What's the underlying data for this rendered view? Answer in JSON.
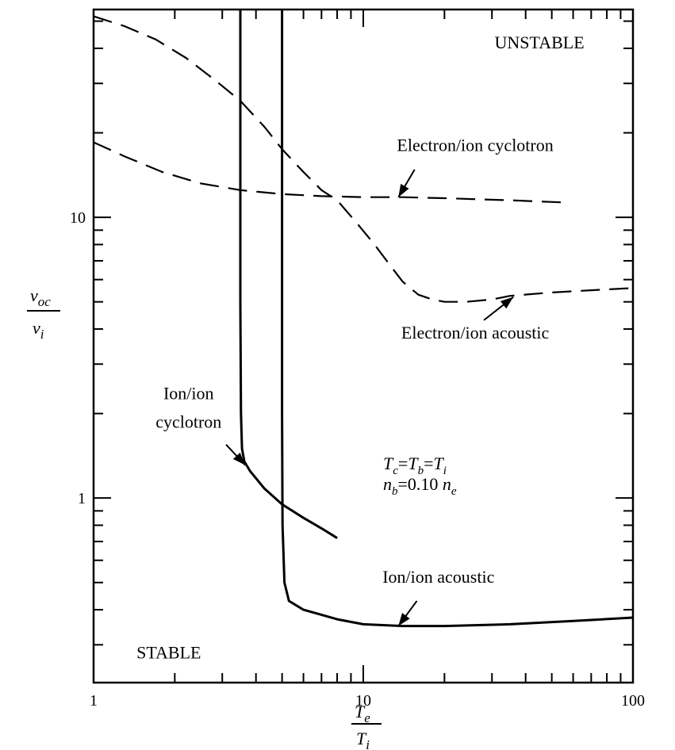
{
  "chart_data": {
    "type": "line",
    "x_scale": "log",
    "y_scale": "log",
    "xlim": [
      1,
      100
    ],
    "ylim": [
      0.22,
      55
    ],
    "x_ticks": [
      {
        "value": 1,
        "label": "1"
      },
      {
        "value": 10,
        "label": "10"
      },
      {
        "value": 100,
        "label": "100"
      }
    ],
    "y_ticks": [
      {
        "value": 1,
        "label": "1"
      },
      {
        "value": 10,
        "label": "10"
      }
    ],
    "xlabel": {
      "num": "T",
      "num_sub": "e",
      "den": "T",
      "den_sub": "i"
    },
    "ylabel": {
      "num": "v",
      "num_sub": "oc",
      "den": "v",
      "den_sub": "i"
    },
    "series": [
      {
        "key": "ion_ion_cyclotron",
        "style": "solid",
        "points": [
          [
            3.5,
            55
          ],
          [
            3.5,
            25
          ],
          [
            3.5,
            5
          ],
          [
            3.52,
            2.0
          ],
          [
            3.55,
            1.5
          ],
          [
            3.62,
            1.35
          ],
          [
            3.8,
            1.25
          ],
          [
            4.3,
            1.08
          ],
          [
            5.0,
            0.95
          ],
          [
            6.0,
            0.85
          ],
          [
            7.0,
            0.78
          ],
          [
            8.0,
            0.72
          ]
        ]
      },
      {
        "key": "ion_ion_acoustic",
        "style": "solid",
        "points": [
          [
            5.0,
            55
          ],
          [
            5.0,
            20
          ],
          [
            5.0,
            2.0
          ],
          [
            5.02,
            0.8
          ],
          [
            5.1,
            0.5
          ],
          [
            5.3,
            0.43
          ],
          [
            6.0,
            0.4
          ],
          [
            8.0,
            0.37
          ],
          [
            10.0,
            0.355
          ],
          [
            14.0,
            0.35
          ],
          [
            20.0,
            0.35
          ],
          [
            35.0,
            0.355
          ],
          [
            60.0,
            0.365
          ],
          [
            100.0,
            0.375
          ]
        ]
      },
      {
        "key": "electron_ion_cyclotron",
        "style": "dashed",
        "points": [
          [
            1.0,
            18.5
          ],
          [
            1.3,
            16.5
          ],
          [
            1.8,
            14.5
          ],
          [
            2.5,
            13.2
          ],
          [
            3.5,
            12.5
          ],
          [
            5.0,
            12.1
          ],
          [
            7.0,
            11.9
          ],
          [
            10.0,
            11.8
          ],
          [
            14.0,
            11.8
          ],
          [
            20.0,
            11.7
          ],
          [
            35.0,
            11.5
          ],
          [
            55.0,
            11.3
          ]
        ]
      },
      {
        "key": "electron_ion_acoustic",
        "style": "dashed",
        "points": [
          [
            1.0,
            52
          ],
          [
            1.3,
            48
          ],
          [
            1.7,
            43
          ],
          [
            2.2,
            37
          ],
          [
            2.8,
            31
          ],
          [
            3.5,
            26
          ],
          [
            4.3,
            21
          ],
          [
            5.0,
            17.5
          ],
          [
            6.0,
            14.5
          ],
          [
            7.0,
            12.5
          ],
          [
            8.0,
            11.5
          ],
          [
            9.5,
            9.5
          ],
          [
            11.0,
            8.0
          ],
          [
            12.5,
            6.8
          ],
          [
            14.0,
            5.9
          ],
          [
            16.0,
            5.3
          ],
          [
            18.0,
            5.1
          ],
          [
            20.0,
            5.0
          ],
          [
            24.0,
            5.0
          ],
          [
            30.0,
            5.1
          ],
          [
            35.0,
            5.25
          ],
          [
            50.0,
            5.4
          ],
          [
            70.0,
            5.5
          ],
          [
            100.0,
            5.6
          ]
        ]
      }
    ],
    "annotations": [
      {
        "key": "unstable",
        "text": "UNSTABLE",
        "x": 45,
        "y": 40
      },
      {
        "key": "stable",
        "text": "STABLE",
        "x": 1.9,
        "y": 0.268
      },
      {
        "key": "label_ee_cyclotron",
        "text": "Electron/ion cyclotron",
        "x": 26,
        "y": 17.2
      },
      {
        "key": "label_ee_acoustic",
        "text": "Electron/ion acoustic",
        "x": 26,
        "y": 3.7
      },
      {
        "key": "label_ii_acoustic",
        "text": "Ion/ion acoustic",
        "x": 19,
        "y": 0.5
      },
      {
        "key": "label_ii_cyclotron_1",
        "text": "Ion/ion",
        "x": 2.25,
        "y": 2.25
      },
      {
        "key": "label_ii_cyclotron_2",
        "text": "cyclotron",
        "x": 2.25,
        "y": 1.78
      }
    ],
    "arrows": [
      {
        "key": "arrow_ee_cyclotron",
        "from": [
          15.5,
          14.8
        ],
        "to": [
          13.5,
          11.8
        ]
      },
      {
        "key": "arrow_ee_acoustic",
        "from": [
          28,
          4.3
        ],
        "to": [
          36,
          5.2
        ]
      },
      {
        "key": "arrow_ii_acoustic",
        "from": [
          15.8,
          0.43
        ],
        "to": [
          13.5,
          0.35
        ]
      },
      {
        "key": "arrow_ii_cyclotron",
        "from": [
          3.1,
          1.55
        ],
        "to": [
          3.65,
          1.31
        ]
      }
    ],
    "params": {
      "line1": {
        "a": "T",
        "a_sub": "c",
        "eq1": "=",
        "b": "T",
        "b_sub": "b",
        "eq2": "=",
        "c": "T",
        "c_sub": "i"
      },
      "line2": {
        "a": "n",
        "a_sub": "b",
        "mid": "=0.10 ",
        "c": "n",
        "c_sub": "e"
      }
    }
  }
}
